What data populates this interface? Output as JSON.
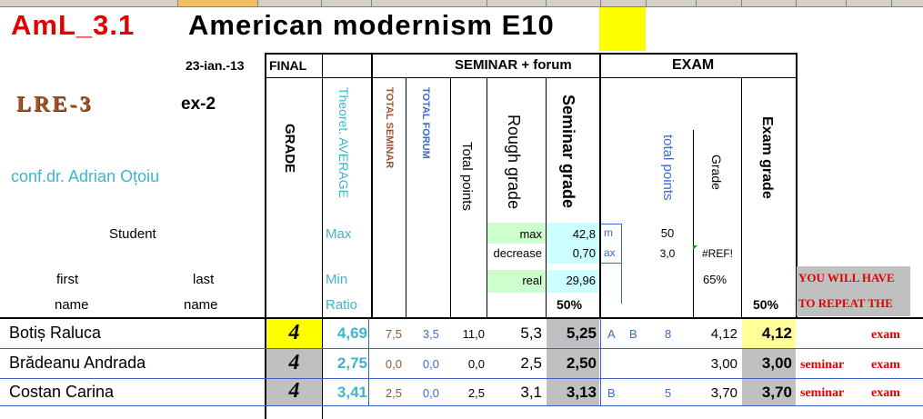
{
  "title": {
    "code": "AmL_3.1",
    "name": "American modernism E10"
  },
  "header": {
    "date": "23-ian.-13",
    "final": "FINAL",
    "seminar_forum": "SEMINAR + forum",
    "exam": "EXAM",
    "logo": "LRE-3",
    "ex": "ex-2",
    "teacher": "conf.dr. Adrian Oțoiu",
    "student": "Student",
    "first": "first",
    "last": "last",
    "name_first": "name",
    "name_last": "name"
  },
  "columns": {
    "grade": "GRADE",
    "theoret": "Theoret. AVERAGE",
    "total_seminar": "TOTAL SEMINAR",
    "total_forum": "TOTAL FORUM",
    "total_points": "Total points",
    "rough_grade": "Rough grade",
    "seminar_grade": "Seminar grade",
    "exam_total_points": "total points",
    "exam_grade_small": "Grade",
    "exam_grade": "Exam grade"
  },
  "params": {
    "max": "Max",
    "min": "Min",
    "ratio": "Ratio",
    "max_label": "max",
    "max_val": "42,8",
    "decrease_label": "decrease",
    "decrease_val": "0,70",
    "real_label": "real",
    "real_val": "29,96",
    "m": "m",
    "ax": "ax",
    "exam_max": "50",
    "exam_ratio": "3,0",
    "ref": "#REF!",
    "pct65": "65%",
    "pct50_sem": "50%",
    "pct50_exam": "50%",
    "repeat_1": "YOU WILL HAVE",
    "repeat_2": "TO REPEAT THE"
  },
  "students": [
    {
      "name": "Botiș Raluca",
      "grade": "4",
      "avg": "4,69",
      "ts": "7,5",
      "tf": "3,5",
      "tp": "11,0",
      "rough": "5,3",
      "sem": "5,25",
      "a": "A",
      "b": "B",
      "ep": "8",
      "eg": "4,12",
      "exam": "4,12",
      "rep1": "",
      "rep2": "exam"
    },
    {
      "name": "Brădeanu Andrada",
      "grade": "4",
      "avg": "2,75",
      "ts": "0,0",
      "tf": "0,0",
      "tp": "0,0",
      "rough": "2,5",
      "sem": "2,50",
      "a": "",
      "b": "",
      "ep": "",
      "eg": "3,00",
      "exam": "3,00",
      "rep1": "seminar",
      "rep2": "exam"
    },
    {
      "name": "Costan Carina",
      "grade": "4",
      "avg": "3,41",
      "ts": "2,5",
      "tf": "0,0",
      "tp": "2,5",
      "rough": "3,1",
      "sem": "3,13",
      "a": "B",
      "b": "",
      "ep": "5",
      "eg": "3,70",
      "exam": "3,70",
      "rep1": "seminar",
      "rep2": "exam"
    }
  ]
}
